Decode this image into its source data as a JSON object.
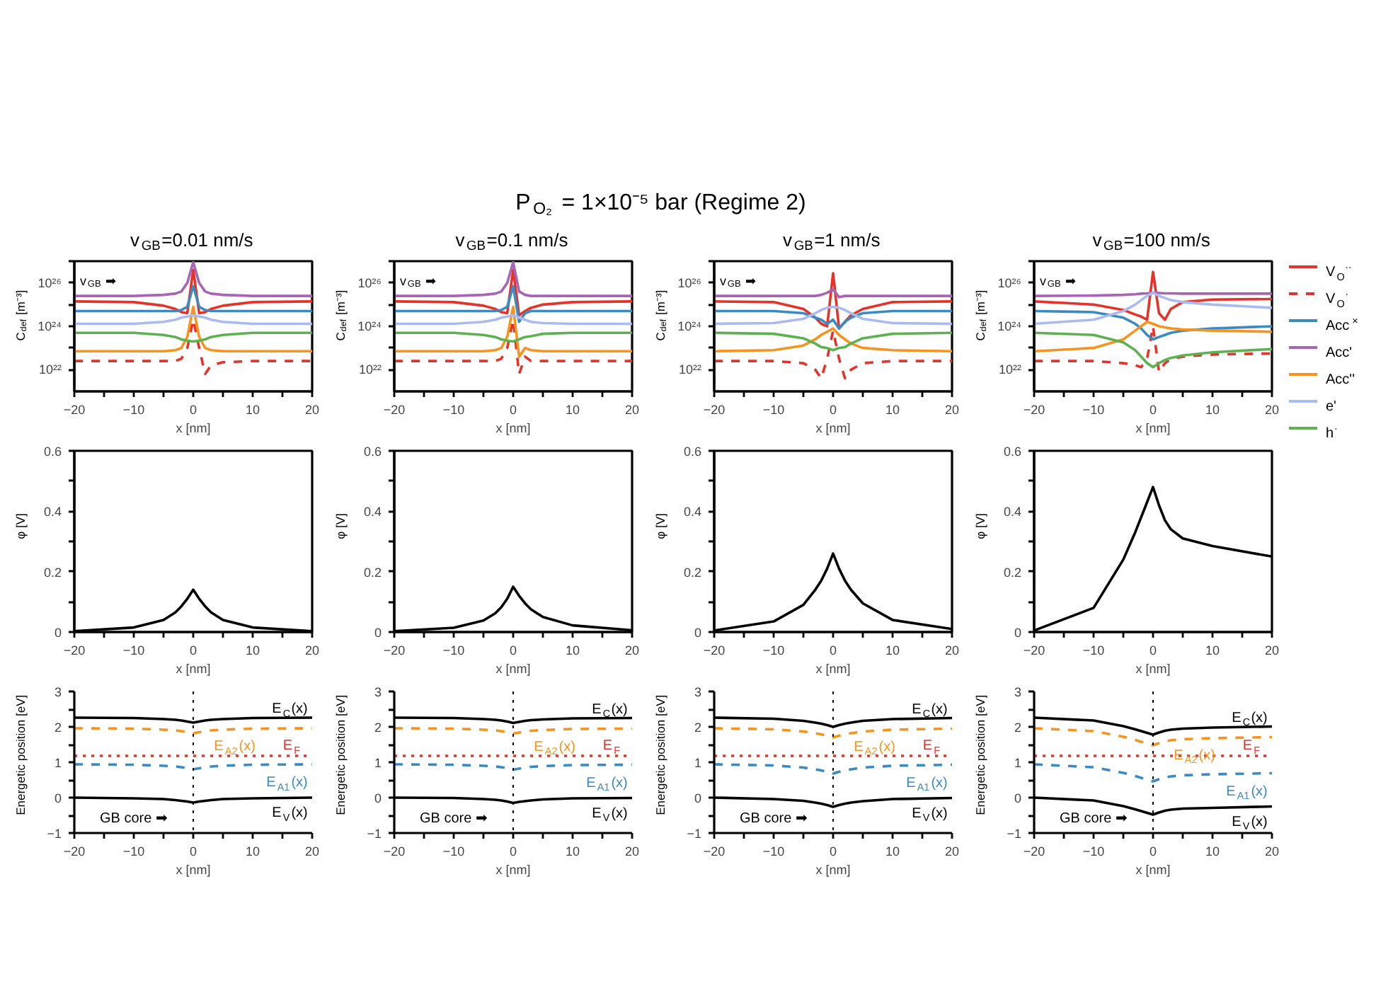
{
  "chart_data": [
    {
      "type": "line",
      "title": "v$_{GB}$=0.01 nm/s",
      "xlabel": "x [nm]",
      "ylabel": "C$_{def}$ [m⁻³]",
      "log": "y",
      "xlim": [
        -20,
        20
      ],
      "xticks": [
        -20,
        {
          "value": -15,
          "label": null
        },
        -10,
        {
          "value": -5,
          "label": null
        },
        0,
        {
          "value": 5,
          "label": null
        },
        10,
        {
          "value": 15,
          "label": null
        },
        20
      ],
      "ylim": [
        1e+21,
        1e+27
      ],
      "yticks": [
        {
          "value": 1e+22,
          "label": "10²²"
        },
        {
          "value": 1e+23,
          "label": null
        },
        {
          "value": 1e+24,
          "label": "10²⁴"
        },
        {
          "value": 1e+25,
          "label": null
        },
        {
          "value": 1e+26,
          "label": "10²⁶"
        },
        {
          "value": 1e+27,
          "label": null
        }
      ],
      "grid": false,
      "annotations": [
        "P$_{O₂}$ = 1×10⁻⁵ bar (Regime 2)",
        "v$_{GB}$ ➡"
      ],
      "x": [
        -20,
        -10,
        -5,
        -3,
        -2,
        -1,
        0,
        1,
        2,
        3,
        5,
        10,
        20
      ],
      "series": [
        {
          "color": "#e6332a",
          "values": [
            1.4e+25,
            1.3e+25,
            8.9e+24,
            6.3e+24,
            4.5e+24,
            4e+24,
            4e+26,
            4e+24,
            4.5e+24,
            6.3e+24,
            8.9e+24,
            1.3e+25,
            1.4e+25
          ]
        },
        {
          "color": "#e6332a",
          "line_style": "dashed",
          "values": [
            2.5e+22,
            2.5e+22,
            2.5e+22,
            2.5e+22,
            3.2e+22,
            1e+23,
            2e+24,
            1e+23,
            6.3e+21,
            1.6e+22,
            2.2e+22,
            2.5e+22,
            2.5e+22
          ]
        },
        {
          "color": "#3b8bc2",
          "values": [
            5e+24,
            5e+24,
            5e+24,
            5e+24,
            5.6e+24,
            7.9e+24,
            7.1e+25,
            7.9e+24,
            5.6e+24,
            5e+24,
            5e+24,
            5e+24,
            5e+24
          ]
        },
        {
          "color": "#a865b5",
          "values": [
            2.5e+25,
            2.5e+25,
            2.8e+25,
            3.2e+25,
            4e+25,
            1e+26,
            8.9e+26,
            1e+26,
            4e+25,
            3.2e+25,
            2.8e+25,
            2.5e+25,
            2.5e+25
          ]
        },
        {
          "color": "#f7931e",
          "values": [
            7.1e+22,
            7.1e+22,
            7.1e+22,
            7.9e+22,
            1e+23,
            3.2e+23,
            7.9e+24,
            3.2e+23,
            1e+23,
            7.9e+22,
            7.1e+22,
            7.1e+22,
            7.1e+22
          ]
        },
        {
          "color": "#a9bbf0",
          "values": [
            1.3e+24,
            1.3e+24,
            1.6e+24,
            2e+24,
            2.5e+24,
            2.8e+24,
            3.2e+24,
            2.8e+24,
            2.5e+24,
            2e+24,
            1.6e+24,
            1.3e+24,
            1.3e+24
          ]
        },
        {
          "color": "#5db151",
          "values": [
            5e+23,
            5e+23,
            4e+23,
            3.2e+23,
            2.5e+23,
            2.2e+23,
            2e+23,
            2.2e+23,
            2.5e+23,
            3.2e+23,
            4e+23,
            5e+23,
            5e+23
          ]
        }
      ]
    },
    {
      "type": "line",
      "title": "v$_{GB}$=0.1 nm/s",
      "xlabel": "x [nm]",
      "ylabel": "C$_{def}$ [m⁻³]",
      "log": "y",
      "xlim": [
        -20,
        20
      ],
      "xticks": [
        -20,
        {
          "value": -15,
          "label": null
        },
        -10,
        {
          "value": -5,
          "label": null
        },
        0,
        {
          "value": 5,
          "label": null
        },
        10,
        {
          "value": 15,
          "label": null
        },
        20
      ],
      "ylim": [
        1e+21,
        1e+27
      ],
      "yticks": [
        {
          "value": 1e+22,
          "label": "10²²"
        },
        {
          "value": 1e+23,
          "label": null
        },
        {
          "value": 1e+24,
          "label": "10²⁴"
        },
        {
          "value": 1e+25,
          "label": null
        },
        {
          "value": 1e+26,
          "label": "10²⁶"
        },
        {
          "value": 1e+27,
          "label": null
        }
      ],
      "grid": false,
      "annotations": [
        "v$_{GB}$ ➡"
      ],
      "x": [
        -20,
        -10,
        -5,
        -3,
        -2,
        -1,
        0,
        1,
        2,
        3,
        5,
        10,
        20
      ],
      "series": [
        {
          "color": "#e6332a",
          "values": [
            1.4e+25,
            1.3e+25,
            8.9e+24,
            6.3e+24,
            4.5e+24,
            4e+24,
            4e+26,
            3.2e+24,
            5e+24,
            7.1e+24,
            1e+25,
            1.3e+25,
            1.4e+25
          ]
        },
        {
          "color": "#e6332a",
          "line_style": "dashed",
          "values": [
            2.5e+22,
            2.5e+22,
            2.5e+22,
            2.5e+22,
            3.2e+22,
            1e+23,
            2e+24,
            6.3e+21,
            4e+22,
            2.5e+22,
            2.5e+22,
            2.5e+22,
            2.5e+22
          ]
        },
        {
          "color": "#3b8bc2",
          "values": [
            5e+24,
            5e+24,
            5e+24,
            5e+24,
            5.6e+24,
            7.9e+24,
            7.1e+25,
            1.6e+24,
            4e+24,
            5e+24,
            5e+24,
            5e+24,
            5e+24
          ]
        },
        {
          "color": "#a865b5",
          "values": [
            2.5e+25,
            2.5e+25,
            2.8e+25,
            3.2e+25,
            4e+25,
            1e+26,
            8.9e+26,
            4e+25,
            2.8e+25,
            2.5e+25,
            2.5e+25,
            2.5e+25,
            2.5e+25
          ]
        },
        {
          "color": "#f7931e",
          "values": [
            7.1e+22,
            7.1e+22,
            7.1e+22,
            7.9e+22,
            1e+23,
            3.2e+23,
            7.9e+24,
            4e+22,
            1e+23,
            7.9e+22,
            7.1e+22,
            7.1e+22,
            7.1e+22
          ]
        },
        {
          "color": "#a9bbf0",
          "values": [
            1.3e+24,
            1.3e+24,
            1.6e+24,
            2e+24,
            2.5e+24,
            2.8e+24,
            3.2e+24,
            2.5e+24,
            2e+24,
            1.6e+24,
            1.4e+24,
            1.3e+24,
            1.3e+24
          ]
        },
        {
          "color": "#5db151",
          "values": [
            5e+23,
            5e+23,
            4e+23,
            3.2e+23,
            2.5e+23,
            2.2e+23,
            2e+23,
            2.5e+23,
            3.2e+23,
            3.5e+23,
            4.5e+23,
            5e+23,
            5e+23
          ]
        }
      ]
    },
    {
      "type": "line",
      "title": "v$_{GB}$=1 nm/s",
      "xlabel": "x [nm]",
      "ylabel": "C$_{def}$ [m⁻³]",
      "log": "y",
      "xlim": [
        -20,
        20
      ],
      "xticks": [
        -20,
        {
          "value": -15,
          "label": null
        },
        -10,
        {
          "value": -5,
          "label": null
        },
        0,
        {
          "value": 5,
          "label": null
        },
        10,
        {
          "value": 15,
          "label": null
        },
        20
      ],
      "ylim": [
        1e+21,
        1e+27
      ],
      "yticks": [
        {
          "value": 1e+22,
          "label": "10²²"
        },
        {
          "value": 1e+23,
          "label": null
        },
        {
          "value": 1e+24,
          "label": "10²⁴"
        },
        {
          "value": 1e+25,
          "label": null
        },
        {
          "value": 1e+26,
          "label": "10²⁶"
        },
        {
          "value": 1e+27,
          "label": null
        }
      ],
      "grid": false,
      "annotations": [
        "v$_{GB}$ ➡"
      ],
      "x": [
        -20,
        -10,
        -5,
        -3,
        -2,
        -1,
        0,
        1,
        2,
        3,
        5,
        10,
        20
      ],
      "series": [
        {
          "color": "#e6332a",
          "values": [
            1.4e+25,
            1.3e+25,
            6.3e+24,
            2.5e+24,
            1.3e+24,
            1e+24,
            2.8e+26,
            7.9e+23,
            1.6e+24,
            3.2e+24,
            6.3e+24,
            1.3e+25,
            1.4e+25
          ]
        },
        {
          "color": "#e6332a",
          "line_style": "dashed",
          "values": [
            2.5e+22,
            2.5e+22,
            2e+22,
            1e+22,
            4e+21,
            3.2e+22,
            6.3e+23,
            3.2e+22,
            4e+21,
            1e+22,
            2e+22,
            2.5e+22,
            2.5e+22
          ]
        },
        {
          "color": "#3b8bc2",
          "values": [
            5e+24,
            5e+24,
            4e+24,
            2.5e+24,
            2e+24,
            1.3e+24,
            2e+24,
            7.9e+23,
            1.6e+24,
            2.5e+24,
            4e+24,
            5e+24,
            5e+24
          ]
        },
        {
          "color": "#a865b5",
          "values": [
            2.5e+25,
            2.5e+25,
            2.5e+25,
            2.5e+25,
            2.8e+25,
            3.5e+25,
            5e+25,
            2.2e+25,
            2.5e+25,
            2.5e+25,
            2.5e+25,
            2.5e+25,
            2.5e+25
          ]
        },
        {
          "color": "#f7931e",
          "values": [
            7.1e+22,
            7.9e+22,
            1.3e+23,
            2.5e+23,
            4e+23,
            5.6e+23,
            7.9e+23,
            4e+23,
            2.5e+23,
            1.6e+23,
            1e+23,
            7.9e+22,
            7.1e+22
          ]
        },
        {
          "color": "#a9bbf0",
          "values": [
            1.3e+24,
            1.4e+24,
            2.2e+24,
            4e+24,
            5.6e+24,
            7.1e+24,
            7.9e+24,
            7.1e+24,
            5.6e+24,
            4e+24,
            2.2e+24,
            1.4e+24,
            1.3e+24
          ]
        },
        {
          "color": "#5db151",
          "values": [
            5e+23,
            4.5e+23,
            2.8e+23,
            1.6e+23,
            1.1e+23,
            1e+23,
            7.9e+22,
            1e+23,
            1.1e+23,
            1.6e+23,
            2.8e+23,
            4.5e+23,
            5e+23
          ]
        }
      ]
    },
    {
      "type": "line",
      "title": "v$_{GB}$=100 nm/s",
      "xlabel": "x [nm]",
      "ylabel": "C$_{def}$ [m⁻³]",
      "log": "y",
      "xlim": [
        -20,
        20
      ],
      "xticks": [
        -20,
        {
          "value": -15,
          "label": null
        },
        -10,
        {
          "value": -5,
          "label": null
        },
        0,
        {
          "value": 5,
          "label": null
        },
        10,
        {
          "value": 15,
          "label": null
        },
        20
      ],
      "ylim": [
        1e+21,
        1e+27
      ],
      "yticks": [
        {
          "value": 1e+22,
          "label": "10²²"
        },
        {
          "value": 1e+23,
          "label": null
        },
        {
          "value": 1e+24,
          "label": "10²⁴"
        },
        {
          "value": 1e+25,
          "label": null
        },
        {
          "value": 1e+26,
          "label": "10²⁶"
        },
        {
          "value": 1e+27,
          "label": null
        }
      ],
      "grid": false,
      "legend": "right",
      "annotations": [
        "v$_{GB}$ ➡"
      ],
      "x": [
        -20,
        -10,
        -5,
        -3,
        -2,
        -1,
        0,
        1,
        2,
        3,
        5,
        10,
        20
      ],
      "series": [
        {
          "name": "V$_{O}$$^{··}$",
          "color": "#e6332a",
          "values": [
            1.4e+25,
            1e+25,
            5.6e+24,
            3.5e+24,
            2.8e+24,
            2e+24,
            3.2e+26,
            4e+24,
            2e+24,
            6.3e+24,
            1.3e+25,
            1.7e+25,
            1.8e+25
          ]
        },
        {
          "name": "V$_{O}$$^{·}$",
          "color": "#e6332a",
          "line_style": "dashed",
          "values": [
            2.5e+22,
            2.5e+22,
            2e+22,
            1.6e+22,
            1.3e+22,
            3.2e+22,
            1e+24,
            7.9e+21,
            2e+22,
            3.2e+22,
            4e+22,
            5e+22,
            5.6e+22
          ]
        },
        {
          "name": "Acc$^{×}$",
          "color": "#3b8bc2",
          "values": [
            5e+24,
            4.5e+24,
            2.5e+24,
            1.3e+24,
            7.9e+23,
            4e+23,
            2.5e+23,
            3.2e+23,
            4e+23,
            5e+23,
            6.3e+23,
            7.9e+23,
            1e+24
          ]
        },
        {
          "name": "Acc'",
          "color": "#a865b5",
          "values": [
            2.5e+25,
            2.6e+25,
            2.8e+25,
            3e+25,
            3.2e+25,
            3.3e+25,
            3.5e+25,
            3.4e+25,
            3.3e+25,
            3.3e+25,
            3.2e+25,
            3.2e+25,
            3.2e+25
          ]
        },
        {
          "name": "Acc''",
          "color": "#f7931e",
          "values": [
            7.1e+22,
            1e+23,
            2.5e+23,
            6.3e+23,
            1e+24,
            1.6e+24,
            1.3e+24,
            1e+24,
            8.9e+23,
            7.9e+23,
            7.1e+23,
            6.3e+23,
            5.6e+23
          ]
        },
        {
          "name": "e'",
          "color": "#a9bbf0",
          "values": [
            1.3e+24,
            2e+24,
            5e+24,
            1e+25,
            1.6e+25,
            2.5e+25,
            3.5e+25,
            2.5e+25,
            2e+25,
            1.6e+25,
            1.3e+25,
            1e+25,
            7.1e+24
          ]
        },
        {
          "name": "h$^{·}$",
          "color": "#5db151",
          "values": [
            5e+23,
            4e+23,
            1.8e+23,
            7.9e+22,
            4e+22,
            2e+22,
            1.3e+22,
            2e+22,
            2.8e+22,
            3.5e+22,
            4.5e+22,
            6.3e+22,
            8.9e+22
          ]
        }
      ]
    },
    {
      "type": "line",
      "xlabel": "x [nm]",
      "ylabel": "φ [V]",
      "xlim": [
        -20,
        20
      ],
      "xticks": [
        -20,
        {
          "value": -15,
          "label": null
        },
        -10,
        {
          "value": -5,
          "label": null
        },
        0,
        {
          "value": 5,
          "label": null
        },
        10,
        {
          "value": 15,
          "label": null
        },
        20
      ],
      "ylim": [
        0,
        0.6
      ],
      "yticks": [
        0,
        {
          "value": 0.1,
          "label": null
        },
        0.2,
        {
          "value": 0.3,
          "label": null
        },
        0.4,
        {
          "value": 0.5,
          "label": null
        },
        0.6
      ],
      "grid": false,
      "x": [
        -20,
        -10,
        -5,
        -3,
        -2,
        -1,
        0,
        1,
        2,
        3,
        5,
        10,
        20
      ],
      "series": [
        {
          "color": "#000000",
          "values": [
            0.003,
            0.015,
            0.04,
            0.065,
            0.085,
            0.11,
            0.14,
            0.11,
            0.085,
            0.065,
            0.04,
            0.015,
            0.003
          ]
        }
      ]
    },
    {
      "type": "line",
      "xlabel": "x [nm]",
      "ylabel": "φ [V]",
      "xlim": [
        -20,
        20
      ],
      "xticks": [
        -20,
        {
          "value": -15,
          "label": null
        },
        -10,
        {
          "value": -5,
          "label": null
        },
        0,
        {
          "value": 5,
          "label": null
        },
        10,
        {
          "value": 15,
          "label": null
        },
        20
      ],
      "ylim": [
        0,
        0.6
      ],
      "yticks": [
        0,
        {
          "value": 0.1,
          "label": null
        },
        0.2,
        {
          "value": 0.3,
          "label": null
        },
        0.4,
        {
          "value": 0.5,
          "label": null
        },
        0.6
      ],
      "grid": false,
      "x": [
        -20,
        -10,
        -5,
        -3,
        -2,
        -1,
        0,
        1,
        2,
        3,
        5,
        10,
        20
      ],
      "series": [
        {
          "color": "#000000",
          "values": [
            0.003,
            0.014,
            0.038,
            0.062,
            0.082,
            0.11,
            0.15,
            0.12,
            0.095,
            0.075,
            0.05,
            0.022,
            0.006
          ]
        }
      ]
    },
    {
      "type": "line",
      "xlabel": "x [nm]",
      "ylabel": "φ [V]",
      "xlim": [
        -20,
        20
      ],
      "xticks": [
        -20,
        {
          "value": -15,
          "label": null
        },
        -10,
        {
          "value": -5,
          "label": null
        },
        0,
        {
          "value": 5,
          "label": null
        },
        10,
        {
          "value": 15,
          "label": null
        },
        20
      ],
      "ylim": [
        0,
        0.6
      ],
      "yticks": [
        0,
        {
          "value": 0.1,
          "label": null
        },
        0.2,
        {
          "value": 0.3,
          "label": null
        },
        0.4,
        {
          "value": 0.5,
          "label": null
        },
        0.6
      ],
      "grid": false,
      "x": [
        -20,
        -10,
        -5,
        -3,
        -2,
        -1,
        0,
        1,
        2,
        3,
        5,
        10,
        20
      ],
      "series": [
        {
          "color": "#000000",
          "values": [
            0.005,
            0.035,
            0.09,
            0.14,
            0.17,
            0.21,
            0.26,
            0.21,
            0.17,
            0.14,
            0.095,
            0.04,
            0.01
          ]
        }
      ]
    },
    {
      "type": "line",
      "xlabel": "x [nm]",
      "ylabel": "φ [V]",
      "xlim": [
        -20,
        20
      ],
      "xticks": [
        -20,
        {
          "value": -15,
          "label": null
        },
        -10,
        {
          "value": -5,
          "label": null
        },
        0,
        {
          "value": 5,
          "label": null
        },
        10,
        {
          "value": 15,
          "label": null
        },
        20
      ],
      "ylim": [
        0,
        0.6
      ],
      "yticks": [
        0,
        {
          "value": 0.1,
          "label": null
        },
        0.2,
        {
          "value": 0.3,
          "label": null
        },
        0.4,
        {
          "value": 0.5,
          "label": null
        },
        0.6
      ],
      "grid": false,
      "x": [
        -20,
        -10,
        -5,
        -3,
        -2,
        -1,
        0,
        1,
        2,
        3,
        5,
        10,
        20
      ],
      "series": [
        {
          "color": "#000000",
          "values": [
            0.005,
            0.08,
            0.24,
            0.33,
            0.38,
            0.43,
            0.48,
            0.42,
            0.37,
            0.34,
            0.31,
            0.285,
            0.25
          ]
        }
      ]
    },
    {
      "type": "line",
      "xlabel": "x [nm]",
      "ylabel": "Energetic position [eV]",
      "xlim": [
        -20,
        20
      ],
      "xticks": [
        -20,
        {
          "value": -15,
          "label": null
        },
        -10,
        {
          "value": -5,
          "label": null
        },
        0,
        {
          "value": 5,
          "label": null
        },
        10,
        {
          "value": 15,
          "label": null
        },
        20
      ],
      "ylim": [
        -1,
        3
      ],
      "yticks": [
        -1,
        {
          "value": -0.5,
          "label": null
        },
        0,
        {
          "value": 0.5,
          "label": null
        },
        1,
        {
          "value": 1.5,
          "label": null
        },
        2,
        {
          "value": 2.5,
          "label": null
        },
        3
      ],
      "grid": false,
      "annotations": [
        "GB core ➡"
      ],
      "ref_lines": [
        {
          "axis": "x",
          "value": 0,
          "color": "#000000",
          "line_style": "dotted"
        }
      ],
      "x": [
        -20,
        -10,
        -5,
        -3,
        -2,
        -1,
        0,
        1,
        2,
        3,
        5,
        10,
        20
      ],
      "series": [
        {
          "name": "E$_{C}$(x)",
          "color": "#000000",
          "values": [
            2.26,
            2.25,
            2.22,
            2.2,
            2.18,
            2.15,
            2.12,
            2.15,
            2.18,
            2.2,
            2.22,
            2.25,
            2.26
          ]
        },
        {
          "name": "E$_{A2}$(x)",
          "color": "#f7931e",
          "line_style": "dashed",
          "values": [
            1.96,
            1.95,
            1.92,
            1.9,
            1.88,
            1.85,
            1.82,
            1.85,
            1.88,
            1.9,
            1.92,
            1.95,
            1.96
          ]
        },
        {
          "name": "E$_{F}$",
          "color": "#e6332a",
          "line_style": "dotted",
          "values": [
            1.18,
            1.18,
            1.18,
            1.18,
            1.18,
            1.18,
            1.18,
            1.18,
            1.18,
            1.18,
            1.18,
            1.18,
            1.18
          ]
        },
        {
          "name": "E$_{A1}$(x)",
          "color": "#3b8bc2",
          "line_style": "dashed",
          "values": [
            0.94,
            0.93,
            0.9,
            0.88,
            0.86,
            0.83,
            0.8,
            0.83,
            0.86,
            0.88,
            0.9,
            0.93,
            0.94
          ]
        },
        {
          "name": "E$_{V}$(x)",
          "color": "#000000",
          "values": [
            0,
            -0.02,
            -0.04,
            -0.07,
            -0.09,
            -0.11,
            -0.14,
            -0.11,
            -0.09,
            -0.07,
            -0.04,
            -0.02,
            0
          ]
        }
      ]
    },
    {
      "type": "line",
      "xlabel": "x [nm]",
      "ylabel": "Energetic position [eV]",
      "xlim": [
        -20,
        20
      ],
      "xticks": [
        -20,
        {
          "value": -15,
          "label": null
        },
        -10,
        {
          "value": -5,
          "label": null
        },
        0,
        {
          "value": 5,
          "label": null
        },
        10,
        {
          "value": 15,
          "label": null
        },
        20
      ],
      "ylim": [
        -1,
        3
      ],
      "yticks": [
        -1,
        {
          "value": -0.5,
          "label": null
        },
        0,
        {
          "value": 0.5,
          "label": null
        },
        1,
        {
          "value": 1.5,
          "label": null
        },
        2,
        {
          "value": 2.5,
          "label": null
        },
        3
      ],
      "grid": false,
      "annotations": [
        "GB core ➡"
      ],
      "ref_lines": [
        {
          "axis": "x",
          "value": 0,
          "color": "#000000",
          "line_style": "dotted"
        }
      ],
      "x": [
        -20,
        -10,
        -5,
        -3,
        -2,
        -1,
        0,
        1,
        2,
        3,
        5,
        10,
        20
      ],
      "series": [
        {
          "name": "E$_{C}$(x)",
          "color": "#000000",
          "values": [
            2.26,
            2.25,
            2.22,
            2.2,
            2.18,
            2.15,
            2.11,
            2.14,
            2.17,
            2.19,
            2.21,
            2.24,
            2.25
          ]
        },
        {
          "name": "E$_{A2}$(x)",
          "color": "#f7931e",
          "line_style": "dashed",
          "values": [
            1.96,
            1.95,
            1.92,
            1.9,
            1.88,
            1.85,
            1.81,
            1.84,
            1.87,
            1.89,
            1.91,
            1.94,
            1.95
          ]
        },
        {
          "name": "E$_{F}$",
          "color": "#e6332a",
          "line_style": "dotted",
          "values": [
            1.18,
            1.18,
            1.18,
            1.18,
            1.18,
            1.18,
            1.18,
            1.18,
            1.18,
            1.18,
            1.18,
            1.18,
            1.18
          ]
        },
        {
          "name": "E$_{A1}$(x)",
          "color": "#3b8bc2",
          "line_style": "dashed",
          "values": [
            0.94,
            0.93,
            0.9,
            0.88,
            0.86,
            0.83,
            0.79,
            0.82,
            0.85,
            0.87,
            0.89,
            0.92,
            0.93
          ]
        },
        {
          "name": "E$_{V}$(x)",
          "color": "#000000",
          "values": [
            0,
            -0.01,
            -0.04,
            -0.06,
            -0.08,
            -0.11,
            -0.15,
            -0.12,
            -0.1,
            -0.08,
            -0.05,
            -0.02,
            -0.01
          ]
        }
      ]
    },
    {
      "type": "line",
      "xlabel": "x [nm]",
      "ylabel": "Energetic position [eV]",
      "xlim": [
        -20,
        20
      ],
      "xticks": [
        -20,
        {
          "value": -15,
          "label": null
        },
        -10,
        {
          "value": -5,
          "label": null
        },
        0,
        {
          "value": 5,
          "label": null
        },
        10,
        {
          "value": 15,
          "label": null
        },
        20
      ],
      "ylim": [
        -1,
        3
      ],
      "yticks": [
        -1,
        {
          "value": -0.5,
          "label": null
        },
        0,
        {
          "value": 0.5,
          "label": null
        },
        1,
        {
          "value": 1.5,
          "label": null
        },
        2,
        {
          "value": 2.5,
          "label": null
        },
        3
      ],
      "grid": false,
      "annotations": [
        "GB core ➡"
      ],
      "ref_lines": [
        {
          "axis": "x",
          "value": 0,
          "color": "#000000",
          "line_style": "dotted"
        }
      ],
      "x": [
        -20,
        -10,
        -5,
        -3,
        -2,
        -1,
        0,
        1,
        2,
        3,
        5,
        10,
        20
      ],
      "series": [
        {
          "name": "E$_{C}$(x)",
          "color": "#000000",
          "values": [
            2.26,
            2.23,
            2.17,
            2.12,
            2.09,
            2.05,
            2,
            2.05,
            2.09,
            2.12,
            2.17,
            2.22,
            2.25
          ]
        },
        {
          "name": "E$_{A2}$(x)",
          "color": "#f7931e",
          "line_style": "dashed",
          "values": [
            1.96,
            1.93,
            1.87,
            1.82,
            1.79,
            1.75,
            1.7,
            1.75,
            1.79,
            1.82,
            1.87,
            1.92,
            1.95
          ]
        },
        {
          "name": "E$_{F}$",
          "color": "#e6332a",
          "line_style": "dotted",
          "values": [
            1.18,
            1.18,
            1.18,
            1.18,
            1.18,
            1.18,
            1.18,
            1.18,
            1.18,
            1.18,
            1.18,
            1.18,
            1.18
          ]
        },
        {
          "name": "E$_{A1}$(x)",
          "color": "#3b8bc2",
          "line_style": "dashed",
          "values": [
            0.94,
            0.91,
            0.85,
            0.8,
            0.77,
            0.73,
            0.68,
            0.73,
            0.77,
            0.8,
            0.85,
            0.9,
            0.93
          ]
        },
        {
          "name": "E$_{V}$(x)",
          "color": "#000000",
          "values": [
            0,
            -0.04,
            -0.09,
            -0.14,
            -0.17,
            -0.21,
            -0.26,
            -0.21,
            -0.17,
            -0.14,
            -0.1,
            -0.04,
            -0.01
          ]
        }
      ]
    },
    {
      "type": "line",
      "xlabel": "x [nm]",
      "ylabel": "Energetic position [eV]",
      "xlim": [
        -20,
        20
      ],
      "xticks": [
        -20,
        {
          "value": -15,
          "label": null
        },
        -10,
        {
          "value": -5,
          "label": null
        },
        0,
        {
          "value": 5,
          "label": null
        },
        10,
        {
          "value": 15,
          "label": null
        },
        20
      ],
      "ylim": [
        -1,
        3
      ],
      "yticks": [
        -1,
        {
          "value": -0.5,
          "label": null
        },
        0,
        {
          "value": 0.5,
          "label": null
        },
        1,
        {
          "value": 1.5,
          "label": null
        },
        2,
        {
          "value": 2.5,
          "label": null
        },
        3
      ],
      "grid": false,
      "annotations": [
        "GB core ➡"
      ],
      "ref_lines": [
        {
          "axis": "x",
          "value": 0,
          "color": "#000000",
          "line_style": "dotted"
        }
      ],
      "x": [
        -20,
        -10,
        -5,
        -3,
        -2,
        -1,
        0,
        1,
        2,
        3,
        5,
        10,
        20
      ],
      "series": [
        {
          "name": "E$_{C}$(x)",
          "color": "#000000",
          "values": [
            2.26,
            2.18,
            2.02,
            1.93,
            1.88,
            1.83,
            1.78,
            1.84,
            1.89,
            1.92,
            1.95,
            1.98,
            2.01
          ]
        },
        {
          "name": "E$_{A2}$(x)",
          "color": "#f7931e",
          "line_style": "dashed",
          "values": [
            1.96,
            1.88,
            1.72,
            1.63,
            1.58,
            1.53,
            1.48,
            1.54,
            1.59,
            1.62,
            1.65,
            1.68,
            1.71
          ]
        },
        {
          "name": "E$_{F}$",
          "color": "#e6332a",
          "line_style": "dotted",
          "values": [
            1.18,
            1.18,
            1.18,
            1.18,
            1.18,
            1.18,
            1.18,
            1.18,
            1.18,
            1.18,
            1.18,
            1.18,
            1.18
          ]
        },
        {
          "name": "E$_{A1}$(x)",
          "color": "#3b8bc2",
          "line_style": "dashed",
          "values": [
            0.94,
            0.86,
            0.7,
            0.61,
            0.56,
            0.51,
            0.46,
            0.52,
            0.57,
            0.6,
            0.63,
            0.66,
            0.69
          ]
        },
        {
          "name": "E$_{V}$(x)",
          "color": "#000000",
          "values": [
            0,
            -0.08,
            -0.24,
            -0.33,
            -0.38,
            -0.43,
            -0.48,
            -0.42,
            -0.37,
            -0.34,
            -0.31,
            -0.29,
            -0.25
          ]
        }
      ]
    }
  ]
}
